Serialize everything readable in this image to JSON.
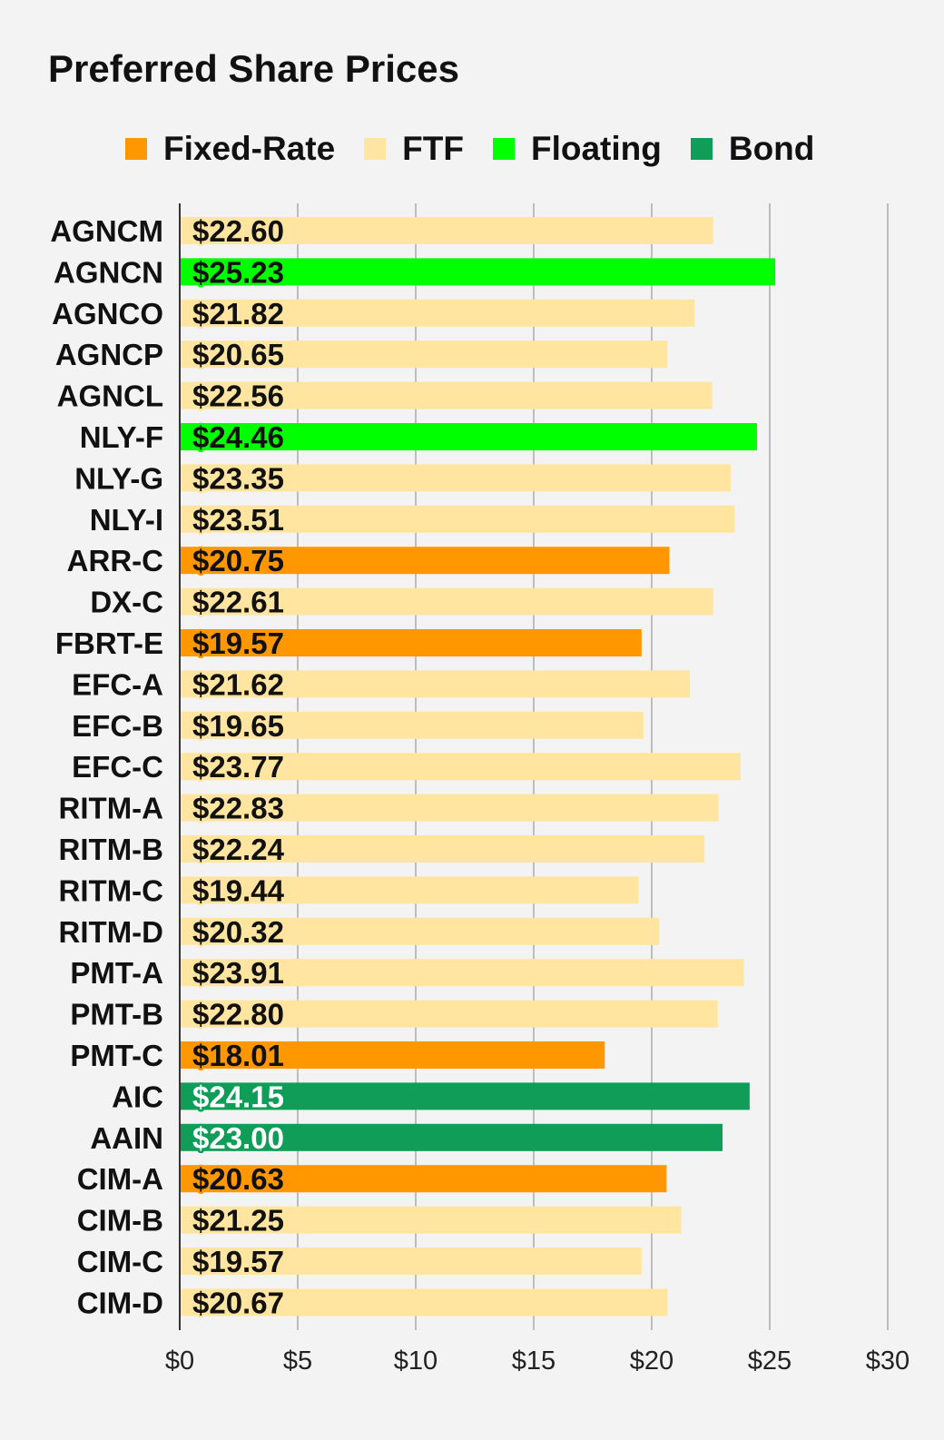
{
  "chart_data": {
    "type": "bar",
    "orientation": "horizontal",
    "title": "Preferred Share Prices",
    "legend": [
      {
        "key": "fixed",
        "label": "Fixed-Rate",
        "color": "#ff9800"
      },
      {
        "key": "ftf",
        "label": "FTF",
        "color": "#ffe5a0"
      },
      {
        "key": "floating",
        "label": "Floating",
        "color": "#00ff00"
      },
      {
        "key": "bond",
        "label": "Bond",
        "color": "#0f9d58"
      }
    ],
    "legend_placement": "top",
    "xlim": [
      0,
      30
    ],
    "xticks": [
      0,
      5,
      10,
      15,
      20,
      25,
      30
    ],
    "xtick_labels": [
      "$0",
      "$5",
      "$10",
      "$15",
      "$20",
      "$25",
      "$30"
    ],
    "grid": true,
    "bars": [
      {
        "name": "AGNCM",
        "value": 22.6,
        "label": "$22.60",
        "type": "ftf"
      },
      {
        "name": "AGNCN",
        "value": 25.23,
        "label": "$25.23",
        "type": "floating"
      },
      {
        "name": "AGNCO",
        "value": 21.82,
        "label": "$21.82",
        "type": "ftf"
      },
      {
        "name": "AGNCP",
        "value": 20.65,
        "label": "$20.65",
        "type": "ftf"
      },
      {
        "name": "AGNCL",
        "value": 22.56,
        "label": "$22.56",
        "type": "ftf"
      },
      {
        "name": "NLY-F",
        "value": 24.46,
        "label": "$24.46",
        "type": "floating"
      },
      {
        "name": "NLY-G",
        "value": 23.35,
        "label": "$23.35",
        "type": "ftf"
      },
      {
        "name": "NLY-I",
        "value": 23.51,
        "label": "$23.51",
        "type": "ftf"
      },
      {
        "name": "ARR-C",
        "value": 20.75,
        "label": "$20.75",
        "type": "fixed"
      },
      {
        "name": "DX-C",
        "value": 22.61,
        "label": "$22.61",
        "type": "ftf"
      },
      {
        "name": "FBRT-E",
        "value": 19.57,
        "label": "$19.57",
        "type": "fixed"
      },
      {
        "name": "EFC-A",
        "value": 21.62,
        "label": "$21.62",
        "type": "ftf"
      },
      {
        "name": "EFC-B",
        "value": 19.65,
        "label": "$19.65",
        "type": "ftf"
      },
      {
        "name": "EFC-C",
        "value": 23.77,
        "label": "$23.77",
        "type": "ftf"
      },
      {
        "name": "RITM-A",
        "value": 22.83,
        "label": "$22.83",
        "type": "ftf"
      },
      {
        "name": "RITM-B",
        "value": 22.24,
        "label": "$22.24",
        "type": "ftf"
      },
      {
        "name": "RITM-C",
        "value": 19.44,
        "label": "$19.44",
        "type": "ftf"
      },
      {
        "name": "RITM-D",
        "value": 20.32,
        "label": "$20.32",
        "type": "ftf"
      },
      {
        "name": "PMT-A",
        "value": 23.91,
        "label": "$23.91",
        "type": "ftf"
      },
      {
        "name": "PMT-B",
        "value": 22.8,
        "label": "$22.80",
        "type": "ftf"
      },
      {
        "name": "PMT-C",
        "value": 18.01,
        "label": "$18.01",
        "type": "fixed"
      },
      {
        "name": "AIC",
        "value": 24.15,
        "label": "$24.15",
        "type": "bond"
      },
      {
        "name": "AAIN",
        "value": 23.0,
        "label": "$23.00",
        "type": "bond"
      },
      {
        "name": "CIM-A",
        "value": 20.63,
        "label": "$20.63",
        "type": "fixed"
      },
      {
        "name": "CIM-B",
        "value": 21.25,
        "label": "$21.25",
        "type": "ftf"
      },
      {
        "name": "CIM-C",
        "value": 19.57,
        "label": "$19.57",
        "type": "ftf"
      },
      {
        "name": "CIM-D",
        "value": 20.67,
        "label": "$20.67",
        "type": "ftf"
      }
    ]
  }
}
